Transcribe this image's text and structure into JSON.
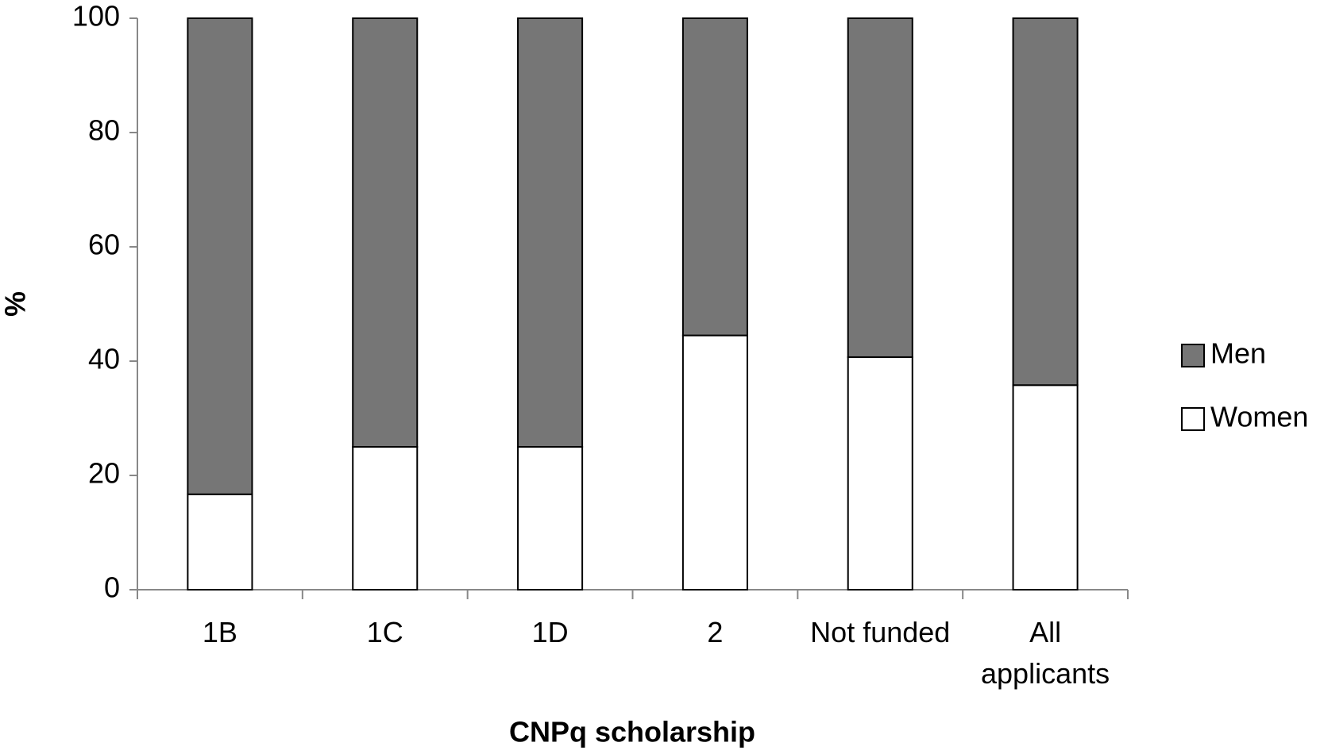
{
  "chart_data": {
    "type": "stacked_bar",
    "x_label": "CNPq scholarship",
    "y_label": "%",
    "categories": [
      "1B",
      "1C",
      "1D",
      "2",
      "Not funded",
      "All applicants"
    ],
    "series": [
      {
        "name": "Women",
        "color": "#ffffff",
        "values": [
          16.7,
          25,
          25,
          44.5,
          40.7,
          35.8
        ]
      },
      {
        "name": "Men",
        "color": "#767676",
        "values": [
          83.3,
          75,
          75,
          55.5,
          59.3,
          64.2
        ]
      }
    ],
    "ylim": [
      0,
      100
    ],
    "yticks": [
      0,
      20,
      40,
      60,
      80,
      100
    ],
    "grid": false,
    "legend": "right"
  }
}
